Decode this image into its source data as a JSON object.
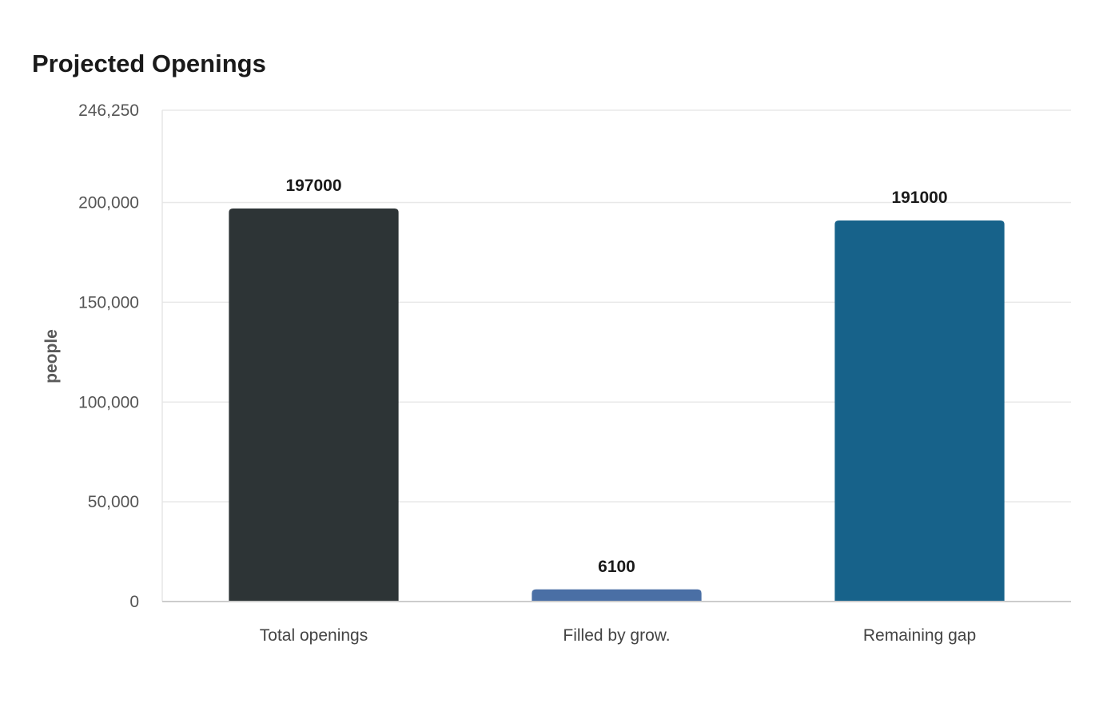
{
  "chart_data": {
    "type": "bar",
    "title": "Projected Openings",
    "xlabel": "",
    "ylabel": "people",
    "categories": [
      "Total openings",
      "Filled by grow.",
      "Remaining gap"
    ],
    "values": [
      197000,
      6100,
      191000
    ],
    "data_labels": [
      "197000",
      "6100",
      "191000"
    ],
    "colors": [
      "#2d3436",
      "#4a6fa5",
      "#17628a"
    ],
    "ylim": [
      0,
      246250
    ],
    "yticks": [
      0,
      50000,
      100000,
      150000,
      200000,
      246250
    ],
    "ytick_labels": [
      "0",
      "50,000",
      "100,000",
      "150,000",
      "200,000",
      "246,250"
    ],
    "grid": true,
    "legend": "none"
  }
}
